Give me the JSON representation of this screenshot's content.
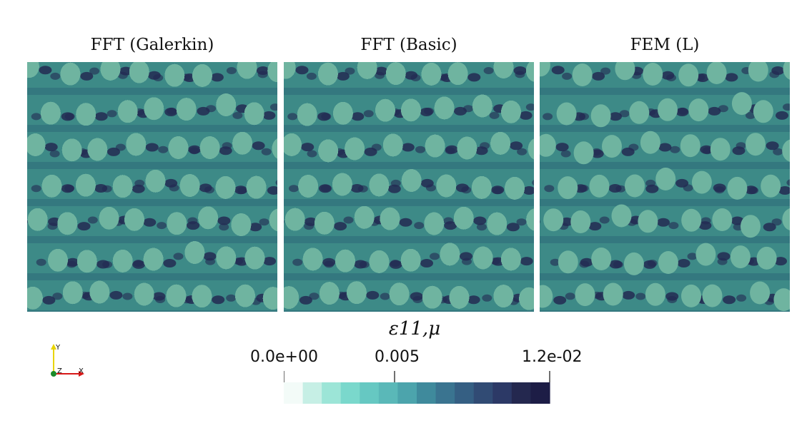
{
  "panels": [
    {
      "title": "FFT (Galerkin)",
      "style": "pixelated"
    },
    {
      "title": "FFT (Basic)",
      "style": "pixelated"
    },
    {
      "title": "FEM (L)",
      "style": "smooth"
    }
  ],
  "colorbar": {
    "title": "ε11,μ",
    "min": 0.0,
    "max": 0.012,
    "ticks": [
      {
        "value": 0.0,
        "label": "0.0e+00"
      },
      {
        "value": 0.005,
        "label": "0.005"
      },
      {
        "value": 0.012,
        "label": "1.2e-02"
      }
    ],
    "colors": [
      "#f3fbf8",
      "#c6efe5",
      "#9ce5d7",
      "#7ad8cc",
      "#66c8c2",
      "#5ab8b8",
      "#4ca4ac",
      "#3f8a9c",
      "#3a7490",
      "#355f83",
      "#314b74",
      "#2c3966",
      "#24284f",
      "#1d1d46"
    ]
  },
  "field_colors": {
    "inclusion": "#6fb4a0",
    "matrix": "#3d8a87",
    "matrix_dark": "#2e6a78",
    "hotspot": "#232a52"
  },
  "axes_triad": {
    "x_label": "X",
    "y_label": "Y",
    "z_label": "Z"
  }
}
